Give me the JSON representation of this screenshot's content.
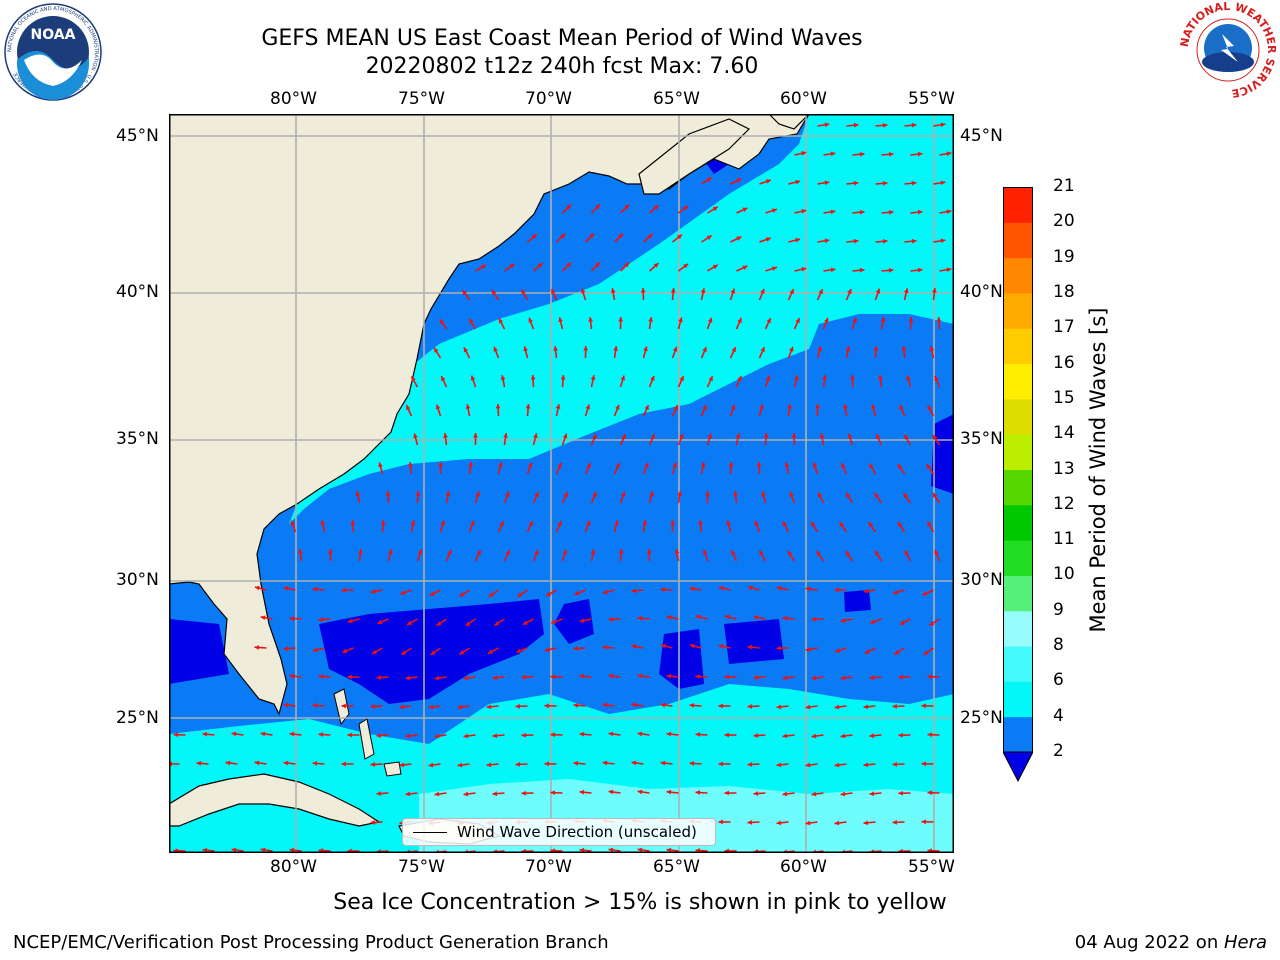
{
  "title": {
    "line1": "GEFS MEAN US East Coast Mean Period of Wind Waves",
    "line2": "20220802 t12z 240h fcst   Max: 7.60"
  },
  "map": {
    "region": "US East Coast / Western North Atlantic",
    "lon_labels": [
      "80°W",
      "75°W",
      "70°W",
      "65°W",
      "60°W",
      "55°W"
    ],
    "lat_labels": [
      "45°N",
      "40°N",
      "35°N",
      "30°N",
      "25°N"
    ],
    "lon_range": [
      -85,
      -54.2
    ],
    "lat_range": [
      20.2,
      45.8
    ],
    "variable": "Mean Period of Wind Waves",
    "units": "s",
    "vector_overlay": "wind wave direction (red arrows)",
    "colors": {
      "land": "#efedd9",
      "ocean_2_4": "#0a7af5",
      "ocean_4_6": "#02f8f8",
      "ocean_6_8": "#6efcfc",
      "ocean_lt_2": "#0000e6",
      "arrow": "#ee1111",
      "grid": "#b0b0b0"
    }
  },
  "legend": {
    "label": "Wind Wave Direction (unscaled)"
  },
  "colorbar": {
    "title": "Mean Period of Wind Waves [s]",
    "levels": [
      "2",
      "4",
      "6",
      "8",
      "9",
      "10",
      "11",
      "12",
      "13",
      "14",
      "15",
      "16",
      "17",
      "18",
      "19",
      "20",
      "21"
    ],
    "colors": [
      "#0a7af5",
      "#02f8f8",
      "#44fafa",
      "#99fcfc",
      "#55f07a",
      "#22dd22",
      "#00c800",
      "#55d800",
      "#bbee00",
      "#dddd00",
      "#ffee00",
      "#ffcc00",
      "#ffaa00",
      "#ff8800",
      "#ff5500",
      "#ff2200"
    ],
    "under_color": "#0000e6"
  },
  "footer": {
    "note": "Sea Ice Concentration > 15% is shown in pink to yellow",
    "credit_left": "NCEP/EMC/Verification Post Processing Product Generation Branch",
    "date": "04 Aug 2022 on ",
    "machine": "Hera"
  },
  "logos": {
    "noaa": {
      "text": "NOAA",
      "ring_text": "NATIONAL OCEANIC AND ATMOSPHERIC ADMINISTRATION · U.S. DEPARTMENT OF COMMERCE"
    },
    "nws": {
      "ring_text": "NATIONAL WEATHER SERVICE"
    }
  }
}
